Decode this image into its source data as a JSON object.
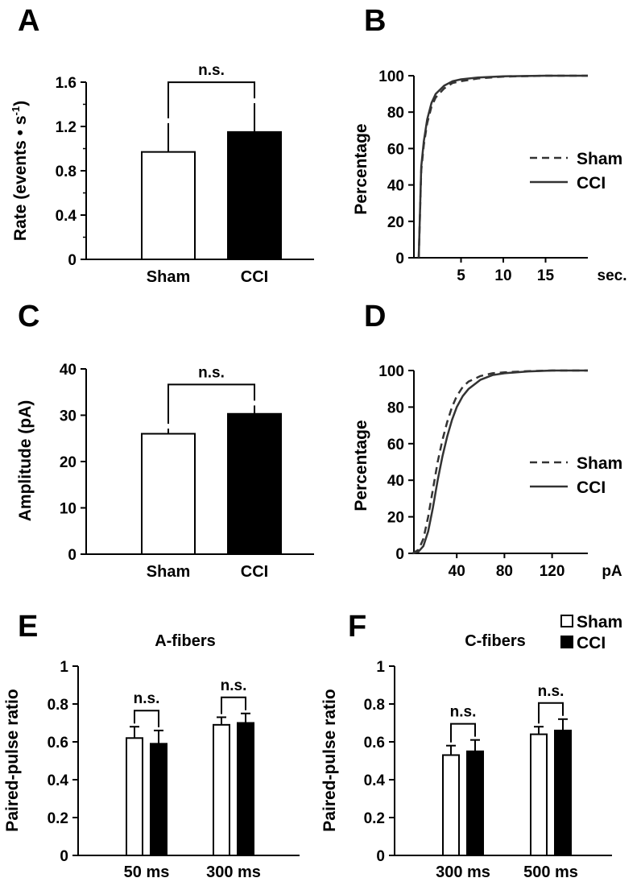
{
  "colors": {
    "sham_fill": "#ffffff",
    "cci_fill": "#000000",
    "axis": "#000000",
    "curve": "#333333"
  },
  "chart_data": [
    {
      "panel": "A",
      "type": "bar",
      "ylabel_main": "Rate (events • s",
      "ylabel_sup": "-1",
      "ylabel_close": ")",
      "ylim": [
        0,
        1.6
      ],
      "yticks": [
        "0",
        "0.4",
        "0.8",
        "1.2",
        "1.6"
      ],
      "ytick_values": [
        0,
        0.4,
        0.8,
        1.2,
        1.6
      ],
      "categories": [
        "Sham",
        "CCI"
      ],
      "values": [
        0.97,
        1.15
      ],
      "errors": [
        0.26,
        0.26
      ],
      "significance": "n.s."
    },
    {
      "panel": "B",
      "type": "line",
      "ylabel": "Percentage",
      "xlabel_unit": "sec.",
      "xlim": [
        0,
        20
      ],
      "ylim": [
        0,
        100
      ],
      "xticks": [
        "5",
        "10",
        "15"
      ],
      "xtick_values": [
        5,
        10,
        15
      ],
      "yticks": [
        "0",
        "20",
        "40",
        "60",
        "80",
        "100"
      ],
      "ytick_values": [
        0,
        20,
        40,
        60,
        80,
        100
      ],
      "series": [
        {
          "name": "Sham",
          "style": "dashed",
          "x": [
            0,
            0.3,
            0.6,
            1,
            1.5,
            2,
            3,
            4,
            5,
            7,
            10,
            15,
            20
          ],
          "y": [
            0,
            48,
            62,
            74,
            83,
            88,
            93,
            96,
            97,
            98.5,
            99.5,
            100,
            100
          ]
        },
        {
          "name": "CCI",
          "style": "solid",
          "x": [
            0,
            0.3,
            0.6,
            1,
            1.5,
            2,
            3,
            4,
            5,
            7,
            10,
            15,
            20
          ],
          "y": [
            0,
            50,
            64,
            76,
            85,
            90,
            94.5,
            97,
            98,
            99,
            99.7,
            100,
            100
          ]
        }
      ]
    },
    {
      "panel": "C",
      "type": "bar",
      "ylabel": "Amplitude (pA)",
      "ylim": [
        0,
        40
      ],
      "yticks": [
        "0",
        "10",
        "20",
        "30",
        "40"
      ],
      "ytick_values": [
        0,
        10,
        20,
        30,
        40
      ],
      "categories": [
        "Sham",
        "CCI"
      ],
      "values": [
        26,
        30.3
      ],
      "errors": [
        1.1,
        1.8
      ],
      "significance": "n.s."
    },
    {
      "panel": "D",
      "type": "line",
      "ylabel": "Percentage",
      "xlabel_unit": "pA",
      "xlim": [
        0,
        150
      ],
      "ylim": [
        0,
        100
      ],
      "xticks": [
        "40",
        "80",
        "120"
      ],
      "xtick_values": [
        40,
        80,
        120
      ],
      "yticks": [
        "0",
        "20",
        "40",
        "60",
        "80",
        "100"
      ],
      "ytick_values": [
        0,
        20,
        40,
        60,
        80,
        100
      ],
      "series": [
        {
          "name": "Sham",
          "style": "dashed",
          "x": [
            3,
            8,
            12,
            16,
            20,
            24,
            28,
            32,
            36,
            40,
            45,
            50,
            60,
            70,
            80,
            100,
            120,
            150
          ],
          "y": [
            0,
            2,
            8,
            20,
            35,
            50,
            62,
            72,
            80,
            86,
            91,
            94,
            97,
            98.5,
            99,
            99.7,
            100,
            100
          ]
        },
        {
          "name": "CCI",
          "style": "solid",
          "x": [
            3,
            8,
            12,
            16,
            20,
            24,
            28,
            32,
            36,
            40,
            45,
            50,
            60,
            70,
            80,
            100,
            120,
            150
          ],
          "y": [
            0,
            1,
            4,
            12,
            25,
            40,
            53,
            64,
            73,
            80,
            86,
            90,
            95,
            97.5,
            98.5,
            99.5,
            100,
            100
          ]
        }
      ]
    },
    {
      "panel": "E",
      "type": "bar",
      "title": "A-fibers",
      "ylabel": "Paired-pulse ratio",
      "ylim": [
        0,
        1
      ],
      "yticks": [
        "0",
        "0.2",
        "0.4",
        "0.6",
        "0.8",
        "1"
      ],
      "ytick_values": [
        0,
        0.2,
        0.4,
        0.6,
        0.8,
        1
      ],
      "categories": [
        "50 ms",
        "300 ms"
      ],
      "series": [
        {
          "name": "Sham",
          "values": [
            0.62,
            0.69
          ],
          "errors": [
            0.06,
            0.04
          ]
        },
        {
          "name": "CCI",
          "values": [
            0.59,
            0.7
          ],
          "errors": [
            0.07,
            0.05
          ]
        }
      ],
      "significance": [
        "n.s.",
        "n.s."
      ]
    },
    {
      "panel": "F",
      "type": "bar",
      "title": "C-fibers",
      "ylabel": "Paired-pulse ratio",
      "ylim": [
        0,
        1
      ],
      "yticks": [
        "0",
        "0.2",
        "0.4",
        "0.6",
        "0.8",
        "1"
      ],
      "ytick_values": [
        0,
        0.2,
        0.4,
        0.6,
        0.8,
        1
      ],
      "categories": [
        "300 ms",
        "500 ms"
      ],
      "series": [
        {
          "name": "Sham",
          "values": [
            0.53,
            0.64
          ],
          "errors": [
            0.05,
            0.04
          ]
        },
        {
          "name": "CCI",
          "values": [
            0.55,
            0.66
          ],
          "errors": [
            0.06,
            0.06
          ]
        }
      ],
      "legend": [
        "Sham",
        "CCI"
      ],
      "significance": [
        "n.s.",
        "n.s."
      ]
    }
  ]
}
